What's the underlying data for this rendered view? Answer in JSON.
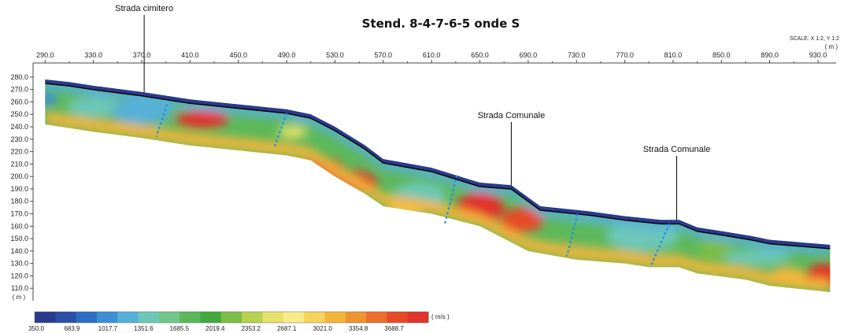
{
  "chart_data": {
    "type": "heatmap",
    "title": "Stend. 8-4-7-6-5 onde S",
    "scale_note": "SCALE: X 1:2, Y 1:2",
    "x_unit": "( m )",
    "y_unit": "( m )",
    "colorbar_unit": "( m/s )",
    "x_ticks": [
      "290.0",
      "330.0",
      "370.0",
      "410.0",
      "450.0",
      "490.0",
      "530.0",
      "570.0",
      "610.0",
      "650.0",
      "690.0",
      "730.0",
      "770.0",
      "810.0",
      "850.0",
      "890.0",
      "930.0"
    ],
    "y_ticks": [
      "280.0",
      "270.0",
      "260.0",
      "250.0",
      "240.0",
      "230.0",
      "220.0",
      "210.0",
      "200.0",
      "190.0",
      "180.0",
      "170.0",
      "160.0",
      "150.0",
      "140.0",
      "130.0",
      "120.0",
      "110.0"
    ],
    "xlim": [
      280,
      945
    ],
    "ylim": [
      100,
      285
    ],
    "colorbar_ticks": [
      "350.0",
      "683.9",
      "1017.7",
      "1351.6",
      "1685.5",
      "2019.4",
      "2353.2",
      "2687.1",
      "3021.0",
      "3354.8",
      "3688.7"
    ],
    "colorbar_range": [
      350.0,
      4022.6
    ],
    "colorbar_colors": [
      "#2a3a8c",
      "#2c4fa8",
      "#2e6cc4",
      "#3d8fd6",
      "#57b0d8",
      "#6cc7b8",
      "#72c88a",
      "#5cb85a",
      "#43a840",
      "#7dbd45",
      "#b7d24e",
      "#e4e26a",
      "#f7ec8a",
      "#f6d35c",
      "#f2b53a",
      "#ef9330",
      "#eb6f2b",
      "#e84a28",
      "#e2332c"
    ],
    "annotations": [
      {
        "text": "Strada cimitero",
        "x": 372
      },
      {
        "text": "Strada Comunale",
        "x": 676
      },
      {
        "text": "Strada Comunale",
        "x": 813
      }
    ],
    "surface_profile": [
      {
        "x": 290,
        "y": 278
      },
      {
        "x": 310,
        "y": 276
      },
      {
        "x": 330,
        "y": 273
      },
      {
        "x": 370,
        "y": 268
      },
      {
        "x": 410,
        "y": 262
      },
      {
        "x": 450,
        "y": 258
      },
      {
        "x": 490,
        "y": 254
      },
      {
        "x": 510,
        "y": 250
      },
      {
        "x": 530,
        "y": 240
      },
      {
        "x": 555,
        "y": 225
      },
      {
        "x": 570,
        "y": 214
      },
      {
        "x": 610,
        "y": 207
      },
      {
        "x": 640,
        "y": 198
      },
      {
        "x": 650,
        "y": 195
      },
      {
        "x": 676,
        "y": 193
      },
      {
        "x": 700,
        "y": 176
      },
      {
        "x": 740,
        "y": 172
      },
      {
        "x": 770,
        "y": 168
      },
      {
        "x": 800,
        "y": 165
      },
      {
        "x": 815,
        "y": 165
      },
      {
        "x": 830,
        "y": 159
      },
      {
        "x": 850,
        "y": 156
      },
      {
        "x": 875,
        "y": 152
      },
      {
        "x": 890,
        "y": 149
      },
      {
        "x": 940,
        "y": 145
      }
    ],
    "bottom_profile": [
      {
        "x": 290,
        "y": 242
      },
      {
        "x": 330,
        "y": 236
      },
      {
        "x": 370,
        "y": 231
      },
      {
        "x": 410,
        "y": 225
      },
      {
        "x": 450,
        "y": 221
      },
      {
        "x": 490,
        "y": 217
      },
      {
        "x": 510,
        "y": 213
      },
      {
        "x": 530,
        "y": 200
      },
      {
        "x": 555,
        "y": 186
      },
      {
        "x": 570,
        "y": 176
      },
      {
        "x": 610,
        "y": 170
      },
      {
        "x": 650,
        "y": 160
      },
      {
        "x": 690,
        "y": 140
      },
      {
        "x": 730,
        "y": 133
      },
      {
        "x": 770,
        "y": 130
      },
      {
        "x": 790,
        "y": 127
      },
      {
        "x": 815,
        "y": 127
      },
      {
        "x": 830,
        "y": 122
      },
      {
        "x": 870,
        "y": 117
      },
      {
        "x": 890,
        "y": 112
      },
      {
        "x": 940,
        "y": 107
      }
    ],
    "zones": [
      {
        "x": 290,
        "y": 262,
        "v": 1000,
        "rx": 10,
        "ry": 5
      },
      {
        "x": 330,
        "y": 256,
        "v": 1400,
        "rx": 22,
        "ry": 8
      },
      {
        "x": 370,
        "y": 252,
        "v": 1200,
        "rx": 25,
        "ry": 10
      },
      {
        "x": 420,
        "y": 246,
        "v": 3900,
        "rx": 22,
        "ry": 7
      },
      {
        "x": 495,
        "y": 236,
        "v": 2600,
        "rx": 12,
        "ry": 5
      },
      {
        "x": 520,
        "y": 205,
        "v": 3900,
        "rx": 18,
        "ry": 10
      },
      {
        "x": 545,
        "y": 195,
        "v": 4000,
        "rx": 20,
        "ry": 10
      },
      {
        "x": 600,
        "y": 185,
        "v": 1500,
        "rx": 22,
        "ry": 10
      },
      {
        "x": 590,
        "y": 175,
        "v": 3000,
        "rx": 15,
        "ry": 8
      },
      {
        "x": 650,
        "y": 175,
        "v": 4000,
        "rx": 20,
        "ry": 12
      },
      {
        "x": 685,
        "y": 165,
        "v": 3800,
        "rx": 18,
        "ry": 10
      },
      {
        "x": 740,
        "y": 155,
        "v": 1800,
        "rx": 25,
        "ry": 10
      },
      {
        "x": 785,
        "y": 152,
        "v": 1400,
        "rx": 30,
        "ry": 12
      },
      {
        "x": 845,
        "y": 142,
        "v": 2200,
        "rx": 15,
        "ry": 7
      },
      {
        "x": 880,
        "y": 135,
        "v": 1500,
        "rx": 28,
        "ry": 6
      },
      {
        "x": 935,
        "y": 120,
        "v": 3900,
        "rx": 15,
        "ry": 10
      },
      {
        "x": 905,
        "y": 120,
        "v": 3100,
        "rx": 15,
        "ry": 7
      }
    ],
    "dashed_lines": [
      {
        "x1": 391,
        "y1": 258,
        "x2": 382,
        "y2": 232
      },
      {
        "x1": 490,
        "y1": 251,
        "x2": 480,
        "y2": 224
      },
      {
        "x1": 631,
        "y1": 201,
        "x2": 621,
        "y2": 162
      },
      {
        "x1": 731,
        "y1": 170,
        "x2": 722,
        "y2": 136
      },
      {
        "x1": 807,
        "y1": 162,
        "x2": 792,
        "y2": 129
      }
    ]
  }
}
